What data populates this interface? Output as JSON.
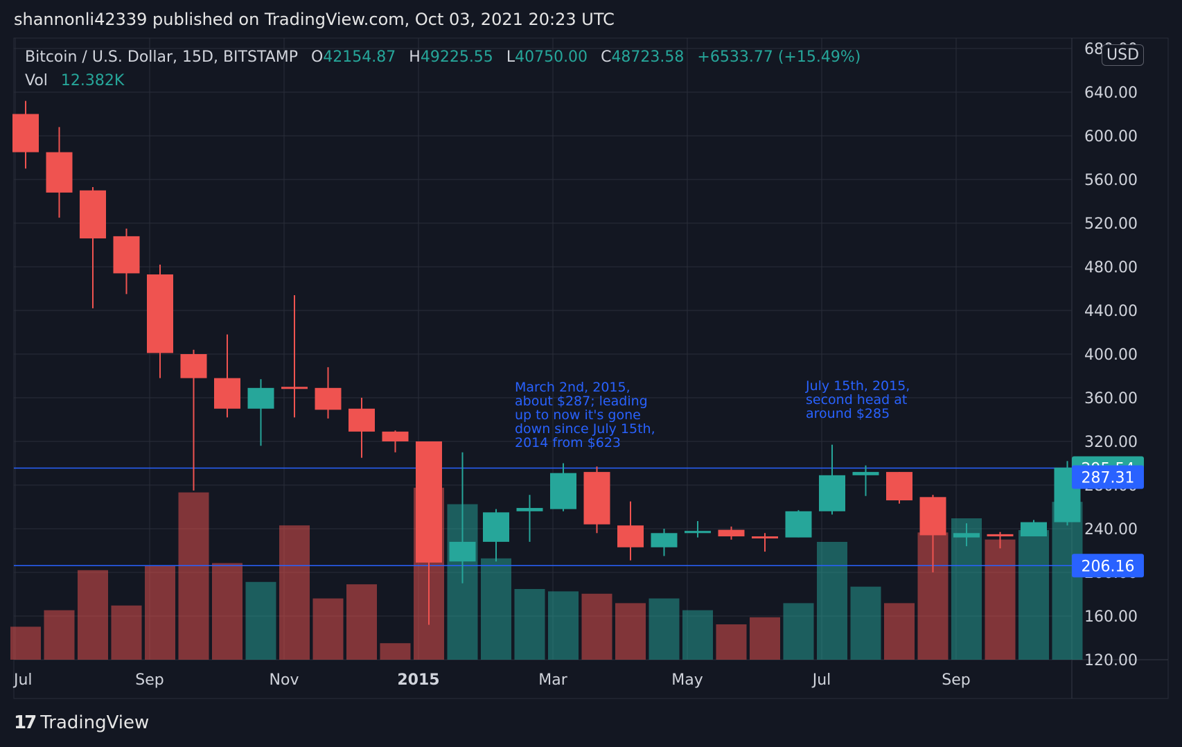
{
  "header": {
    "publish_line": "shannonli42339 published on TradingView.com, Oct 03, 2021 20:23 UTC"
  },
  "legend": {
    "symbol": "Bitcoin / U.S. Dollar, 15D, BITSTAMP",
    "o_label": "O",
    "o_value": "42154.87",
    "h_label": "H",
    "h_value": "49225.55",
    "l_label": "L",
    "l_value": "40750.00",
    "c_label": "C",
    "c_value": "48723.58",
    "change": "+6533.77 (+15.49%)",
    "vol_label": "Vol",
    "vol_value": "12.382K"
  },
  "currency": "USD",
  "annotations": [
    [
      "March 2nd, 2015,",
      "about $287; leading",
      "up to now it's gone",
      "down since July 15th,",
      "2014 from $623"
    ],
    [
      "July 15th, 2015,",
      "second head at",
      "around $285"
    ]
  ],
  "footer": {
    "brand": "TradingView"
  },
  "colors": {
    "up": "#26a69a",
    "down": "#ef5350",
    "line": "#2962ff",
    "grid": "#2a2e39",
    "bg": "#131722"
  },
  "chart_data": {
    "type": "candlestick",
    "ylim": [
      100,
      680
    ],
    "y_ticks": [
      120,
      160,
      200,
      240,
      280,
      320,
      360,
      400,
      440,
      480,
      520,
      560,
      600,
      640,
      680
    ],
    "x_tick_labels": [
      {
        "index": 0,
        "label": "Jul"
      },
      {
        "index": 4,
        "label": "Sep"
      },
      {
        "index": 8,
        "label": "Nov"
      },
      {
        "index": 12,
        "label": "2015"
      },
      {
        "index": 16,
        "label": "Mar"
      },
      {
        "index": 20,
        "label": "May"
      },
      {
        "index": 24,
        "label": "Jul"
      },
      {
        "index": 28,
        "label": "Sep"
      }
    ],
    "horizontal_lines": [
      295.54,
      206.16
    ],
    "price_labels": [
      {
        "value": "295.54",
        "price": 295.54,
        "color": "#26a69a"
      },
      {
        "value": "287.31",
        "price": 287.31,
        "color": "#2962ff"
      },
      {
        "value": "206.16",
        "price": 206.16,
        "color": "#2962ff"
      }
    ],
    "candles": [
      {
        "o": 620,
        "h": 632,
        "l": 570,
        "c": 585
      },
      {
        "o": 585,
        "h": 608,
        "l": 525,
        "c": 548
      },
      {
        "o": 550,
        "h": 553,
        "l": 442,
        "c": 506
      },
      {
        "o": 508,
        "h": 515,
        "l": 455,
        "c": 474
      },
      {
        "o": 473,
        "h": 482,
        "l": 378,
        "c": 401
      },
      {
        "o": 400,
        "h": 404,
        "l": 275,
        "c": 378
      },
      {
        "o": 378,
        "h": 418,
        "l": 342,
        "c": 350
      },
      {
        "o": 350,
        "h": 377,
        "l": 316,
        "c": 369
      },
      {
        "o": 370,
        "h": 454,
        "l": 342,
        "c": 369
      },
      {
        "o": 369,
        "h": 388,
        "l": 341,
        "c": 349
      },
      {
        "o": 350,
        "h": 360,
        "l": 305,
        "c": 329
      },
      {
        "o": 329,
        "h": 330,
        "l": 310,
        "c": 320
      },
      {
        "o": 320,
        "h": 320,
        "l": 152,
        "c": 209
      },
      {
        "o": 210,
        "h": 310,
        "l": 190,
        "c": 228
      },
      {
        "o": 228,
        "h": 258,
        "l": 210,
        "c": 255
      },
      {
        "o": 256,
        "h": 271,
        "l": 228,
        "c": 259
      },
      {
        "o": 258,
        "h": 300,
        "l": 256,
        "c": 291
      },
      {
        "o": 292,
        "h": 297,
        "l": 236,
        "c": 244
      },
      {
        "o": 243,
        "h": 265,
        "l": 211,
        "c": 223
      },
      {
        "o": 223,
        "h": 240,
        "l": 215,
        "c": 236
      },
      {
        "o": 236,
        "h": 247,
        "l": 232,
        "c": 238
      },
      {
        "o": 239,
        "h": 242,
        "l": 230,
        "c": 233
      },
      {
        "o": 233,
        "h": 236,
        "l": 219,
        "c": 232
      },
      {
        "o": 232,
        "h": 257,
        "l": 232,
        "c": 256
      },
      {
        "o": 256,
        "h": 317,
        "l": 253,
        "c": 289
      },
      {
        "o": 289,
        "h": 298,
        "l": 270,
        "c": 292
      },
      {
        "o": 292,
        "h": 292,
        "l": 263,
        "c": 266
      },
      {
        "o": 269,
        "h": 271,
        "l": 200,
        "c": 234
      },
      {
        "o": 232,
        "h": 245,
        "l": 224,
        "c": 236
      },
      {
        "o": 235,
        "h": 237,
        "l": 222,
        "c": 233
      },
      {
        "o": 233,
        "h": 248,
        "l": 233,
        "c": 246
      },
      {
        "o": 246,
        "h": 302,
        "l": 243,
        "c": 296
      }
    ],
    "volume": [
      0.14,
      0.21,
      0.38,
      0.23,
      0.4,
      0.71,
      0.41,
      0.33,
      0.57,
      0.26,
      0.32,
      0.07,
      0.73,
      0.66,
      0.43,
      0.3,
      0.29,
      0.28,
      0.24,
      0.26,
      0.21,
      0.15,
      0.18,
      0.24,
      0.5,
      0.31,
      0.24,
      0.54,
      0.6,
      0.51,
      0.55,
      0.67
    ]
  }
}
